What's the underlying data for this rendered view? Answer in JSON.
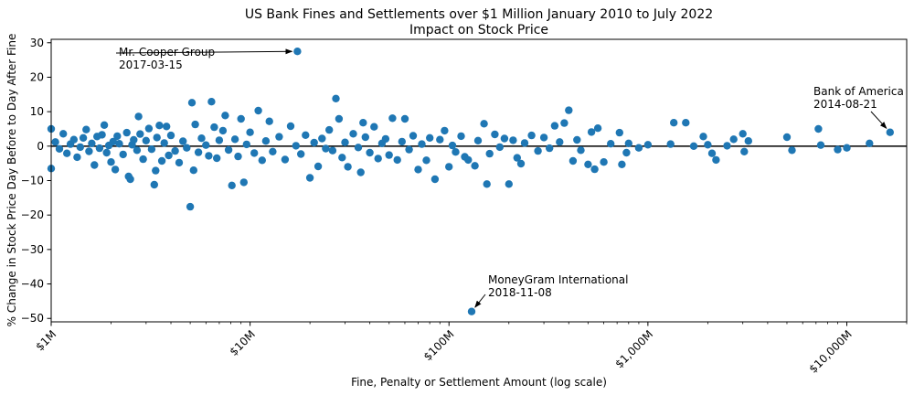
{
  "chart_data": {
    "type": "scatter",
    "title": "US Bank Fines and Settlements over $1 Million January 2010 to July 2022",
    "subtitle": "Impact on Stock Price",
    "xlabel": "Fine, Penalty or Settlement Amount (log scale)",
    "ylabel": "% Change in Stock Price Day Before to Day After Fine",
    "x_scale": "log",
    "xlim": [
      1,
      20000
    ],
    "ylim": [
      -51,
      31
    ],
    "x_ticks": [
      {
        "value": 1,
        "label": "$1M"
      },
      {
        "value": 10,
        "label": "$10M"
      },
      {
        "value": 100,
        "label": "$100M"
      },
      {
        "value": 1000,
        "label": "$1,000M"
      },
      {
        "value": 10000,
        "label": "$10,000M"
      }
    ],
    "y_ticks": [
      30,
      20,
      10,
      0,
      -10,
      -20,
      -30,
      -40,
      -50
    ],
    "zero_line": true,
    "marker_color": "#1f77b4",
    "units": {
      "x": "millions USD",
      "y": "percent"
    },
    "points": [
      [
        1.0,
        5.0
      ],
      [
        1.0,
        -6.5
      ],
      [
        1.05,
        1.2
      ],
      [
        1.1,
        -0.8
      ],
      [
        1.15,
        3.6
      ],
      [
        1.2,
        -2.1
      ],
      [
        1.25,
        0.6
      ],
      [
        1.3,
        1.9
      ],
      [
        1.35,
        -3.2
      ],
      [
        1.4,
        -0.3
      ],
      [
        1.45,
        2.4
      ],
      [
        1.5,
        4.8
      ],
      [
        1.55,
        -1.5
      ],
      [
        1.6,
        0.8
      ],
      [
        1.65,
        -5.5
      ],
      [
        1.7,
        2.8
      ],
      [
        1.75,
        -0.6
      ],
      [
        1.8,
        3.3
      ],
      [
        1.85,
        6.1
      ],
      [
        1.9,
        -1.9
      ],
      [
        1.95,
        0.2
      ],
      [
        2.0,
        -4.6
      ],
      [
        2.05,
        1.3
      ],
      [
        2.1,
        -6.8
      ],
      [
        2.15,
        2.9
      ],
      [
        2.2,
        0.7
      ],
      [
        2.3,
        -2.4
      ],
      [
        2.4,
        3.9
      ],
      [
        2.45,
        -8.8
      ],
      [
        2.5,
        -9.6
      ],
      [
        2.55,
        0.4
      ],
      [
        2.6,
        1.8
      ],
      [
        2.7,
        -1.2
      ],
      [
        2.75,
        8.6
      ],
      [
        2.8,
        3.5
      ],
      [
        2.9,
        -3.8
      ],
      [
        3.0,
        1.6
      ],
      [
        3.1,
        5.1
      ],
      [
        3.2,
        -0.9
      ],
      [
        3.3,
        -11.2
      ],
      [
        3.35,
        -7.1
      ],
      [
        3.4,
        2.5
      ],
      [
        3.5,
        6.0
      ],
      [
        3.6,
        -4.3
      ],
      [
        3.7,
        0.9
      ],
      [
        3.8,
        5.7
      ],
      [
        3.9,
        -2.7
      ],
      [
        4.0,
        3.1
      ],
      [
        4.2,
        -1.4
      ],
      [
        4.4,
        -4.8
      ],
      [
        4.6,
        1.4
      ],
      [
        4.8,
        -0.5
      ],
      [
        5.0,
        -17.6
      ],
      [
        5.1,
        12.6
      ],
      [
        5.2,
        -7.0
      ],
      [
        5.3,
        6.3
      ],
      [
        5.5,
        -1.8
      ],
      [
        5.7,
        2.3
      ],
      [
        6.0,
        0.3
      ],
      [
        6.2,
        -2.8
      ],
      [
        6.4,
        12.9
      ],
      [
        6.6,
        5.5
      ],
      [
        6.8,
        -3.5
      ],
      [
        7.0,
        1.7
      ],
      [
        7.3,
        4.5
      ],
      [
        7.5,
        8.9
      ],
      [
        7.8,
        -1.1
      ],
      [
        8.1,
        -11.4
      ],
      [
        8.4,
        2.0
      ],
      [
        8.7,
        -3.0
      ],
      [
        9.0,
        7.9
      ],
      [
        9.3,
        -10.5
      ],
      [
        9.6,
        0.5
      ],
      [
        10.0,
        4.0
      ],
      [
        10.5,
        -2.0
      ],
      [
        11.0,
        10.3
      ],
      [
        11.5,
        -4.1
      ],
      [
        12.0,
        1.5
      ],
      [
        12.5,
        7.2
      ],
      [
        13.0,
        -1.6
      ],
      [
        14.0,
        2.7
      ],
      [
        15.0,
        -3.9
      ],
      [
        16.0,
        5.8
      ],
      [
        17.0,
        0.1
      ],
      [
        18.0,
        -2.3
      ],
      [
        19.0,
        3.2
      ],
      [
        20.0,
        -9.2
      ],
      [
        21.0,
        1.0
      ],
      [
        22.0,
        -5.9
      ],
      [
        23.0,
        2.2
      ],
      [
        24.0,
        -0.7
      ],
      [
        25.0,
        4.7
      ],
      [
        26.0,
        -1.3
      ],
      [
        27.0,
        13.8
      ],
      [
        28.0,
        7.9
      ],
      [
        29.0,
        -3.3
      ],
      [
        30.0,
        1.1
      ],
      [
        31.0,
        -6.0
      ],
      [
        33.0,
        3.6
      ],
      [
        35.0,
        -0.4
      ],
      [
        36.0,
        -7.6
      ],
      [
        37.0,
        6.8
      ],
      [
        38.0,
        2.6
      ],
      [
        40.0,
        -1.9
      ],
      [
        42.0,
        5.6
      ],
      [
        44.0,
        -3.6
      ],
      [
        46.0,
        0.8
      ],
      [
        48.0,
        2.1
      ],
      [
        50.0,
        -2.6
      ],
      [
        52.0,
        8.1
      ],
      [
        55.0,
        -4.0
      ],
      [
        58.0,
        1.3
      ],
      [
        60.0,
        7.9
      ],
      [
        63.0,
        -1.0
      ],
      [
        66.0,
        3.0
      ],
      [
        70.0,
        -6.8
      ],
      [
        73.0,
        0.6
      ],
      [
        77.0,
        -4.1
      ],
      [
        80.0,
        2.4
      ],
      [
        85.0,
        -9.6
      ],
      [
        90.0,
        1.9
      ],
      [
        95.0,
        4.5
      ],
      [
        100.0,
        -6.0
      ],
      [
        104.0,
        0.2
      ],
      [
        108.0,
        -1.7
      ],
      [
        115.0,
        2.9
      ],
      [
        120.0,
        -3.1
      ],
      [
        125.0,
        -4.0
      ],
      [
        130.0,
        -48.0
      ],
      [
        135.0,
        -5.7
      ],
      [
        140.0,
        1.6
      ],
      [
        150.0,
        6.5
      ],
      [
        155.0,
        -11.0
      ],
      [
        160.0,
        -2.2
      ],
      [
        170.0,
        3.4
      ],
      [
        180.0,
        -0.3
      ],
      [
        190.0,
        2.2
      ],
      [
        200.0,
        -11.0
      ],
      [
        210.0,
        1.7
      ],
      [
        220.0,
        -3.4
      ],
      [
        230.0,
        -5.1
      ],
      [
        240.0,
        0.9
      ],
      [
        260.0,
        3.1
      ],
      [
        280.0,
        -1.4
      ],
      [
        300.0,
        2.5
      ],
      [
        320.0,
        -0.6
      ],
      [
        340.0,
        5.9
      ],
      [
        360.0,
        1.2
      ],
      [
        380.0,
        6.7
      ],
      [
        400.0,
        10.4
      ],
      [
        420.0,
        -4.3
      ],
      [
        440.0,
        1.8
      ],
      [
        460.0,
        -1.2
      ],
      [
        500.0,
        -5.3
      ],
      [
        520.0,
        4.1
      ],
      [
        540.0,
        -6.7
      ],
      [
        560.0,
        5.2
      ],
      [
        600.0,
        -4.6
      ],
      [
        650.0,
        0.7
      ],
      [
        720.0,
        3.9
      ],
      [
        740.0,
        -5.3
      ],
      [
        780.0,
        -1.9
      ],
      [
        800.0,
        0.8
      ],
      [
        900.0,
        -0.5
      ],
      [
        1000.0,
        0.4
      ],
      [
        1300.0,
        0.6
      ],
      [
        1350.0,
        6.8
      ],
      [
        1550.0,
        6.8
      ],
      [
        1700.0,
        0.0
      ],
      [
        1900.0,
        2.8
      ],
      [
        2000.0,
        0.4
      ],
      [
        2100.0,
        -2.1
      ],
      [
        2200.0,
        -4.0
      ],
      [
        2500.0,
        0.1
      ],
      [
        2700.0,
        2.0
      ],
      [
        3000.0,
        3.6
      ],
      [
        3050.0,
        -1.6
      ],
      [
        3200.0,
        1.5
      ],
      [
        5000.0,
        2.6
      ],
      [
        5300.0,
        -1.2
      ],
      [
        7200.0,
        5.0
      ],
      [
        7400.0,
        0.3
      ],
      [
        9000.0,
        -1.0
      ],
      [
        10000.0,
        -0.5
      ],
      [
        13000.0,
        0.8
      ],
      [
        16500.0,
        4.0
      ],
      [
        17.3,
        27.5
      ]
    ],
    "annotations": [
      {
        "name": "Mr. Cooper Group",
        "date": "2017-03-15",
        "x": 17.3,
        "y": 27.5
      },
      {
        "name": "MoneyGram International",
        "date": "2018-11-08",
        "x": 130,
        "y": -48.0
      },
      {
        "name": "Bank of America",
        "date": "2014-08-21",
        "x": 16500,
        "y": 4.0
      }
    ]
  }
}
